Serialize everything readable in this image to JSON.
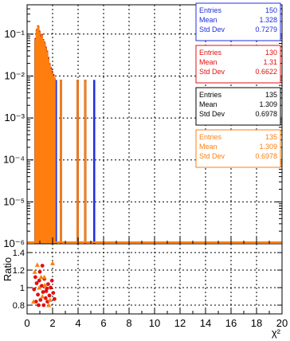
{
  "chart_data": [
    {
      "type": "histogram",
      "panel": "main",
      "title": "",
      "xlabel": "",
      "ylabel": "",
      "xlim": [
        0,
        20
      ],
      "ylim": [
        1e-06,
        0.5
      ],
      "yscale": "log",
      "grid": true,
      "yticks": [
        "10⁻⁶",
        "10⁻⁵",
        "10⁻⁴",
        "10⁻³",
        "10⁻²",
        "10⁻¹"
      ],
      "series": [
        {
          "color": "#1f2fdc",
          "values": [
            [
              0.6,
              0.07
            ],
            [
              0.7,
              0.12
            ],
            [
              0.8,
              0.15
            ],
            [
              0.9,
              0.11
            ],
            [
              1.0,
              0.08
            ],
            [
              1.1,
              0.09
            ],
            [
              1.2,
              0.07
            ],
            [
              1.3,
              0.06
            ],
            [
              1.4,
              0.045
            ],
            [
              1.5,
              0.035
            ],
            [
              1.6,
              0.025
            ],
            [
              1.7,
              0.018
            ],
            [
              1.8,
              0.014
            ],
            [
              1.9,
              0.012
            ],
            [
              2.0,
              0.01
            ],
            [
              2.1,
              0.008
            ],
            [
              2.2,
              0.008
            ],
            [
              5.2,
              0.008
            ]
          ],
          "stats": {
            "title": "",
            "entries_label": "Entries",
            "entries": "150",
            "mean_label": "Mean",
            "mean": "1.328",
            "std_label": "Std Dev",
            "std": "0.7279"
          }
        },
        {
          "color": "#e01010",
          "values": [
            [
              0.6,
              0.08
            ],
            [
              0.7,
              0.13
            ],
            [
              0.8,
              0.16
            ],
            [
              0.9,
              0.12
            ],
            [
              1.0,
              0.09
            ],
            [
              1.1,
              0.1
            ],
            [
              1.2,
              0.075
            ],
            [
              1.3,
              0.065
            ],
            [
              1.4,
              0.05
            ],
            [
              1.5,
              0.04
            ],
            [
              1.6,
              0.028
            ],
            [
              1.7,
              0.02
            ],
            [
              1.8,
              0.016
            ],
            [
              1.9,
              0.013
            ],
            [
              2.0,
              0.011
            ],
            [
              2.1,
              0.009
            ],
            [
              2.6,
              0.008
            ],
            [
              3.9,
              0.008
            ],
            [
              4.5,
              0.008
            ]
          ],
          "stats": {
            "entries_label": "Entries",
            "entries": "130",
            "mean_label": "Mean",
            "mean": "1.31",
            "std_label": "Std Dev",
            "std": "0.6622"
          }
        },
        {
          "color": "#000000",
          "values": [
            [
              0.6,
              0.075
            ],
            [
              0.7,
              0.125
            ],
            [
              0.8,
              0.155
            ],
            [
              0.9,
              0.115
            ],
            [
              1.0,
              0.085
            ],
            [
              1.1,
              0.095
            ],
            [
              1.2,
              0.072
            ],
            [
              1.3,
              0.062
            ],
            [
              1.4,
              0.048
            ],
            [
              1.5,
              0.038
            ],
            [
              1.6,
              0.026
            ],
            [
              1.7,
              0.019
            ],
            [
              1.8,
              0.015
            ],
            [
              1.9,
              0.012
            ],
            [
              2.0,
              0.01
            ],
            [
              2.1,
              0.009
            ],
            [
              2.6,
              0.008
            ],
            [
              3.9,
              0.008
            ],
            [
              4.5,
              0.008
            ]
          ],
          "stats": {
            "entries_label": "Entries",
            "entries": "135",
            "mean_label": "Mean",
            "mean": "1.309",
            "std_label": "Std Dev",
            "std": "0.6978"
          }
        },
        {
          "color": "#ff7f0e",
          "values": [
            [
              0.6,
              0.075
            ],
            [
              0.7,
              0.125
            ],
            [
              0.8,
              0.155
            ],
            [
              0.9,
              0.115
            ],
            [
              1.0,
              0.085
            ],
            [
              1.1,
              0.095
            ],
            [
              1.2,
              0.072
            ],
            [
              1.3,
              0.062
            ],
            [
              1.4,
              0.048
            ],
            [
              1.5,
              0.038
            ],
            [
              1.6,
              0.026
            ],
            [
              1.7,
              0.019
            ],
            [
              1.8,
              0.015
            ],
            [
              1.9,
              0.012
            ],
            [
              2.0,
              0.01
            ],
            [
              2.1,
              0.009
            ],
            [
              2.6,
              0.008
            ],
            [
              3.9,
              0.008
            ],
            [
              4.5,
              0.008
            ]
          ],
          "stats": {
            "entries_label": "Entries",
            "entries": "135",
            "mean_label": "Mean",
            "mean": "1.309",
            "std_label": "Std Dev",
            "std": "0.6978"
          }
        }
      ]
    },
    {
      "type": "scatter",
      "panel": "ratio",
      "title": "",
      "xlabel": "χ²",
      "ylabel": "Ratio",
      "xlim": [
        0,
        20
      ],
      "ylim": [
        0.7,
        1.5
      ],
      "grid": true,
      "xticks": [
        "0",
        "2",
        "4",
        "6",
        "8",
        "10",
        "12",
        "14",
        "16",
        "18",
        "20"
      ],
      "yticks": [
        "0.8",
        "1",
        "1.2",
        "1.4"
      ],
      "series": [
        {
          "color": "#e01010",
          "marker": "circle",
          "points": [
            [
              0.55,
              0.98
            ],
            [
              0.65,
              1.12
            ],
            [
              0.75,
              1.05
            ],
            [
              0.85,
              0.92
            ],
            [
              0.95,
              1.08
            ],
            [
              1.05,
              0.86
            ],
            [
              1.15,
              1.02
            ],
            [
              1.25,
              0.95
            ],
            [
              1.35,
              1.1
            ],
            [
              1.45,
              0.88
            ],
            [
              1.55,
              0.99
            ],
            [
              1.65,
              1.04
            ],
            [
              1.75,
              0.91
            ],
            [
              0.7,
              0.84
            ],
            [
              1.0,
              1.18
            ],
            [
              1.3,
              0.8
            ],
            [
              1.6,
              0.84
            ],
            [
              1.85,
              1.0
            ],
            [
              2.05,
              0.94
            ],
            [
              1.2,
              1.25
            ],
            [
              0.9,
              0.8
            ],
            [
              1.5,
              0.96
            ],
            [
              1.95,
              1.08
            ],
            [
              2.15,
              0.87
            ]
          ]
        },
        {
          "color": "#ff7f0e",
          "marker": "triangle",
          "points": [
            [
              0.5,
              0.84
            ],
            [
              0.6,
              1.18
            ],
            [
              0.8,
              1.26
            ],
            [
              0.95,
              1.0
            ],
            [
              1.1,
              1.12
            ],
            [
              1.2,
              0.9
            ],
            [
              1.4,
              1.03
            ],
            [
              1.7,
              0.8
            ],
            [
              2.0,
              1.28
            ],
            [
              1.8,
              0.86
            ],
            [
              1.35,
              1.12
            ]
          ]
        }
      ]
    }
  ]
}
